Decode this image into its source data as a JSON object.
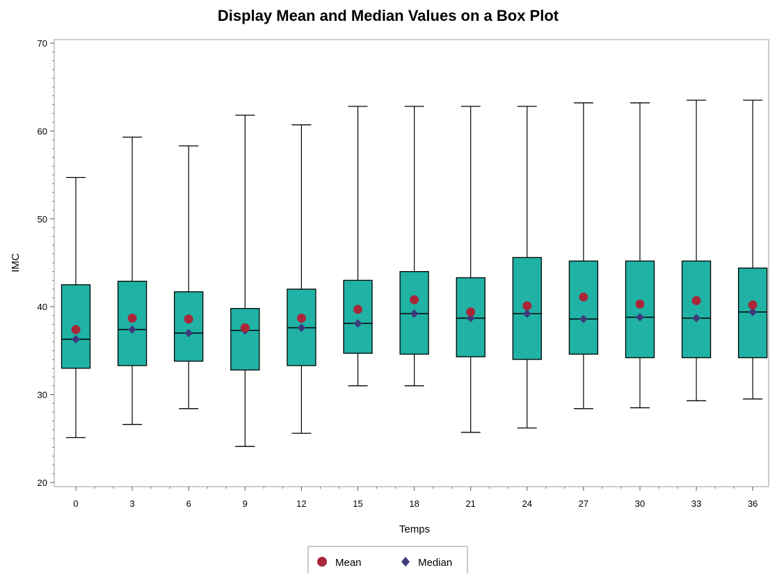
{
  "chart_data": {
    "type": "box",
    "title": "Display Mean and Median Values on a Box Plot",
    "xlabel": "Temps",
    "ylabel": "IMC",
    "ylim": [
      20,
      70
    ],
    "yticks": [
      20,
      30,
      40,
      50,
      60,
      70
    ],
    "categories": [
      "0",
      "3",
      "6",
      "9",
      "12",
      "15",
      "18",
      "21",
      "24",
      "27",
      "30",
      "33",
      "36"
    ],
    "boxes": [
      {
        "min": 25.1,
        "q1": 33.0,
        "median": 36.3,
        "q3": 42.5,
        "max": 54.7,
        "mean": 37.4
      },
      {
        "min": 26.6,
        "q1": 33.3,
        "median": 37.4,
        "q3": 42.9,
        "max": 59.3,
        "mean": 38.7
      },
      {
        "min": 28.4,
        "q1": 33.8,
        "median": 37.0,
        "q3": 41.7,
        "max": 58.3,
        "mean": 38.6
      },
      {
        "min": 24.1,
        "q1": 32.8,
        "median": 37.3,
        "q3": 39.8,
        "max": 61.8,
        "mean": 37.6
      },
      {
        "min": 25.6,
        "q1": 33.3,
        "median": 37.6,
        "q3": 42.0,
        "max": 60.7,
        "mean": 38.7
      },
      {
        "min": 31.0,
        "q1": 34.7,
        "median": 38.1,
        "q3": 43.0,
        "max": 62.8,
        "mean": 39.7
      },
      {
        "min": 31.0,
        "q1": 34.6,
        "median": 39.2,
        "q3": 44.0,
        "max": 62.8,
        "mean": 40.8
      },
      {
        "min": 25.7,
        "q1": 34.3,
        "median": 38.7,
        "q3": 43.3,
        "max": 62.8,
        "mean": 39.4
      },
      {
        "min": 26.2,
        "q1": 34.0,
        "median": 39.2,
        "q3": 45.6,
        "max": 62.8,
        "mean": 40.1
      },
      {
        "min": 28.4,
        "q1": 34.6,
        "median": 38.6,
        "q3": 45.2,
        "max": 63.2,
        "mean": 41.1
      },
      {
        "min": 28.5,
        "q1": 34.2,
        "median": 38.8,
        "q3": 45.2,
        "max": 63.2,
        "mean": 40.3
      },
      {
        "min": 29.3,
        "q1": 34.2,
        "median": 38.7,
        "q3": 45.2,
        "max": 63.5,
        "mean": 40.7
      },
      {
        "min": 29.5,
        "q1": 34.2,
        "median": 39.4,
        "q3": 44.4,
        "max": 63.5,
        "mean": 40.2
      }
    ],
    "legend": {
      "position": "bottom",
      "items": [
        {
          "name": "Mean",
          "marker": "circle",
          "color": "#a8283a"
        },
        {
          "name": "Median",
          "marker": "diamond",
          "color": "#3d3a7a"
        }
      ]
    },
    "colors": {
      "box_fill": "#20b2a5",
      "box_stroke": "#000000",
      "mean": "#a8283a",
      "median": "#3d3a7a",
      "frame": "#999999"
    },
    "grid": false
  }
}
